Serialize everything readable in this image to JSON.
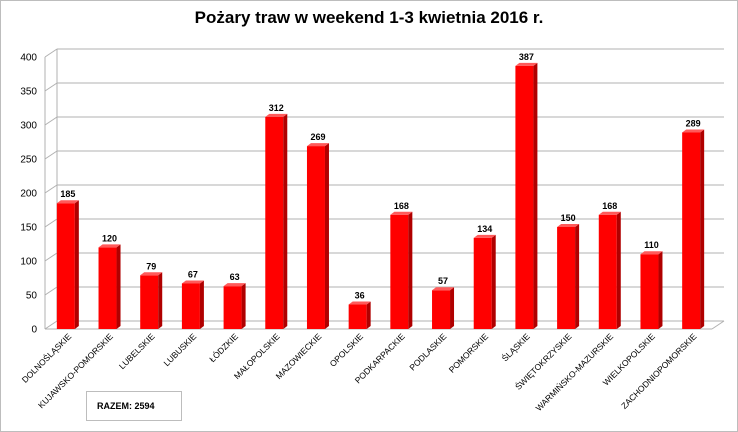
{
  "chart_data": {
    "type": "bar",
    "title": "Pożary traw w weekend 1-3 kwietnia 2016 r.",
    "categories": [
      "DOLNOŚLĄSKIE",
      "KUJAWSKO-POMORSKIE",
      "LUBELSKIE",
      "LUBUSKIE",
      "ŁÓDZKIE",
      "MAŁOPOLSKIE",
      "MAZOWIECKIE",
      "OPOLSKIE",
      "PODKARPACKIE",
      "PODLASKIE",
      "POMORSKIE",
      "ŚLĄSKIE",
      "ŚWIĘTOKRZYSKIE",
      "WARMIŃSKO-MAZURSKIE",
      "WIELKOPOLSKIE",
      "ZACHODNIOPOMORSKIE"
    ],
    "values": [
      185,
      120,
      79,
      67,
      63,
      312,
      269,
      36,
      168,
      57,
      134,
      387,
      150,
      168,
      110,
      289
    ],
    "ylim": [
      0,
      400
    ],
    "yticks": [
      0,
      50,
      100,
      150,
      200,
      250,
      300,
      350,
      400
    ],
    "grid": true,
    "bar_color": "#ff0000",
    "total_label": "RAZEM: 2594"
  }
}
